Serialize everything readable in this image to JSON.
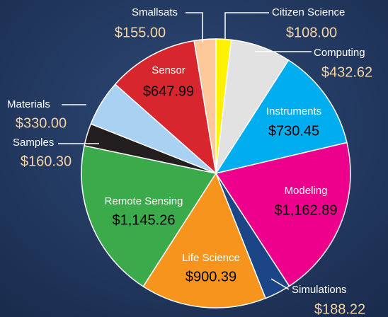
{
  "chart_data": {
    "type": "pie",
    "categories": [
      "Citizen Science",
      "Computing",
      "Instruments",
      "Modeling",
      "Simulations",
      "Life Science",
      "Remote Sensing",
      "Samples",
      "Materials",
      "Sensor",
      "Smallsats"
    ],
    "values": [
      108.0,
      432.62,
      730.45,
      1162.89,
      188.22,
      900.39,
      1145.26,
      160.3,
      330.0,
      647.99,
      155.0
    ],
    "value_labels": [
      "$108.00",
      "$432.62",
      "$730.45",
      "$1,162.89",
      "$188.22",
      "$900.39",
      "$1,145.26",
      "$160.30",
      "$330.00",
      "$647.99",
      "$155.00"
    ],
    "colors": [
      "#fff200",
      "#e2e2e2",
      "#00aeef",
      "#ec008c",
      "#1c4587",
      "#f7941d",
      "#3aaa4a",
      "#231f20",
      "#a9d1f2",
      "#d7262e",
      "#fdc89a"
    ]
  }
}
